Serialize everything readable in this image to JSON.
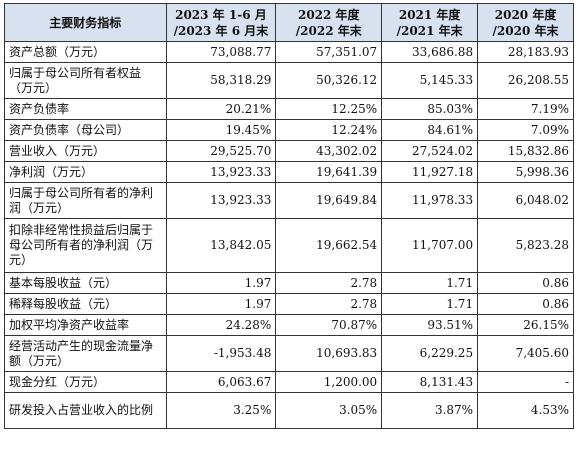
{
  "table": {
    "headers": [
      {
        "line1": "主要财务指标",
        "line2": ""
      },
      {
        "line1": "2023 年 1-6 月",
        "line2": "/2023 年 6 月末"
      },
      {
        "line1": "2022 年度",
        "line2": "/2022 年末"
      },
      {
        "line1": "2021 年度",
        "line2": "/2021 年末"
      },
      {
        "line1": "2020 年度",
        "line2": "/2020 年末"
      }
    ],
    "rows": [
      {
        "label": "资产总额（万元）",
        "values": [
          "73,088.77",
          "57,351.07",
          "33,686.88",
          "28,183.93"
        ]
      },
      {
        "label": "归属于母公司所有者权益（万元）",
        "values": [
          "58,318.29",
          "50,326.12",
          "5,145.33",
          "26,208.55"
        ]
      },
      {
        "label": "资产负债率",
        "values": [
          "20.21%",
          "12.25%",
          "85.03%",
          "7.19%"
        ]
      },
      {
        "label": "资产负债率（母公司）",
        "values": [
          "19.45%",
          "12.24%",
          "84.61%",
          "7.09%"
        ]
      },
      {
        "label": "营业收入（万元）",
        "values": [
          "29,525.70",
          "43,302.02",
          "27,524.02",
          "15,832.86"
        ]
      },
      {
        "label": "净利润（万元）",
        "values": [
          "13,923.33",
          "19,641.39",
          "11,927.18",
          "5,998.36"
        ]
      },
      {
        "label": "归属于母公司所有者的净利润（万元）",
        "values": [
          "13,923.33",
          "19,649.84",
          "11,978.33",
          "6,048.02"
        ]
      },
      {
        "label": "扣除非经常性损益后归属于母公司所有者的净利润（万元）",
        "values": [
          "13,842.05",
          "19,662.54",
          "11,707.00",
          "5,823.28"
        ]
      },
      {
        "label": "基本每股收益（元）",
        "values": [
          "1.97",
          "2.78",
          "1.71",
          "0.86"
        ]
      },
      {
        "label": "稀释每股收益（元）",
        "values": [
          "1.97",
          "2.78",
          "1.71",
          "0.86"
        ]
      },
      {
        "label": "加权平均净资产收益率",
        "values": [
          "24.28%",
          "70.87%",
          "93.51%",
          "26.15%"
        ]
      },
      {
        "label": "经营活动产生的现金流量净额（万元）",
        "values": [
          "-1,953.48",
          "10,693.83",
          "6,229.25",
          "7,405.60"
        ]
      },
      {
        "label": "现金分红（万元）",
        "values": [
          "6,063.67",
          "1,200.00",
          "8,131.43",
          "-"
        ]
      },
      {
        "label": "研发投入占营业收入的比例",
        "values": [
          "3.25%",
          "3.05%",
          "3.87%",
          "4.53%"
        ]
      }
    ]
  }
}
